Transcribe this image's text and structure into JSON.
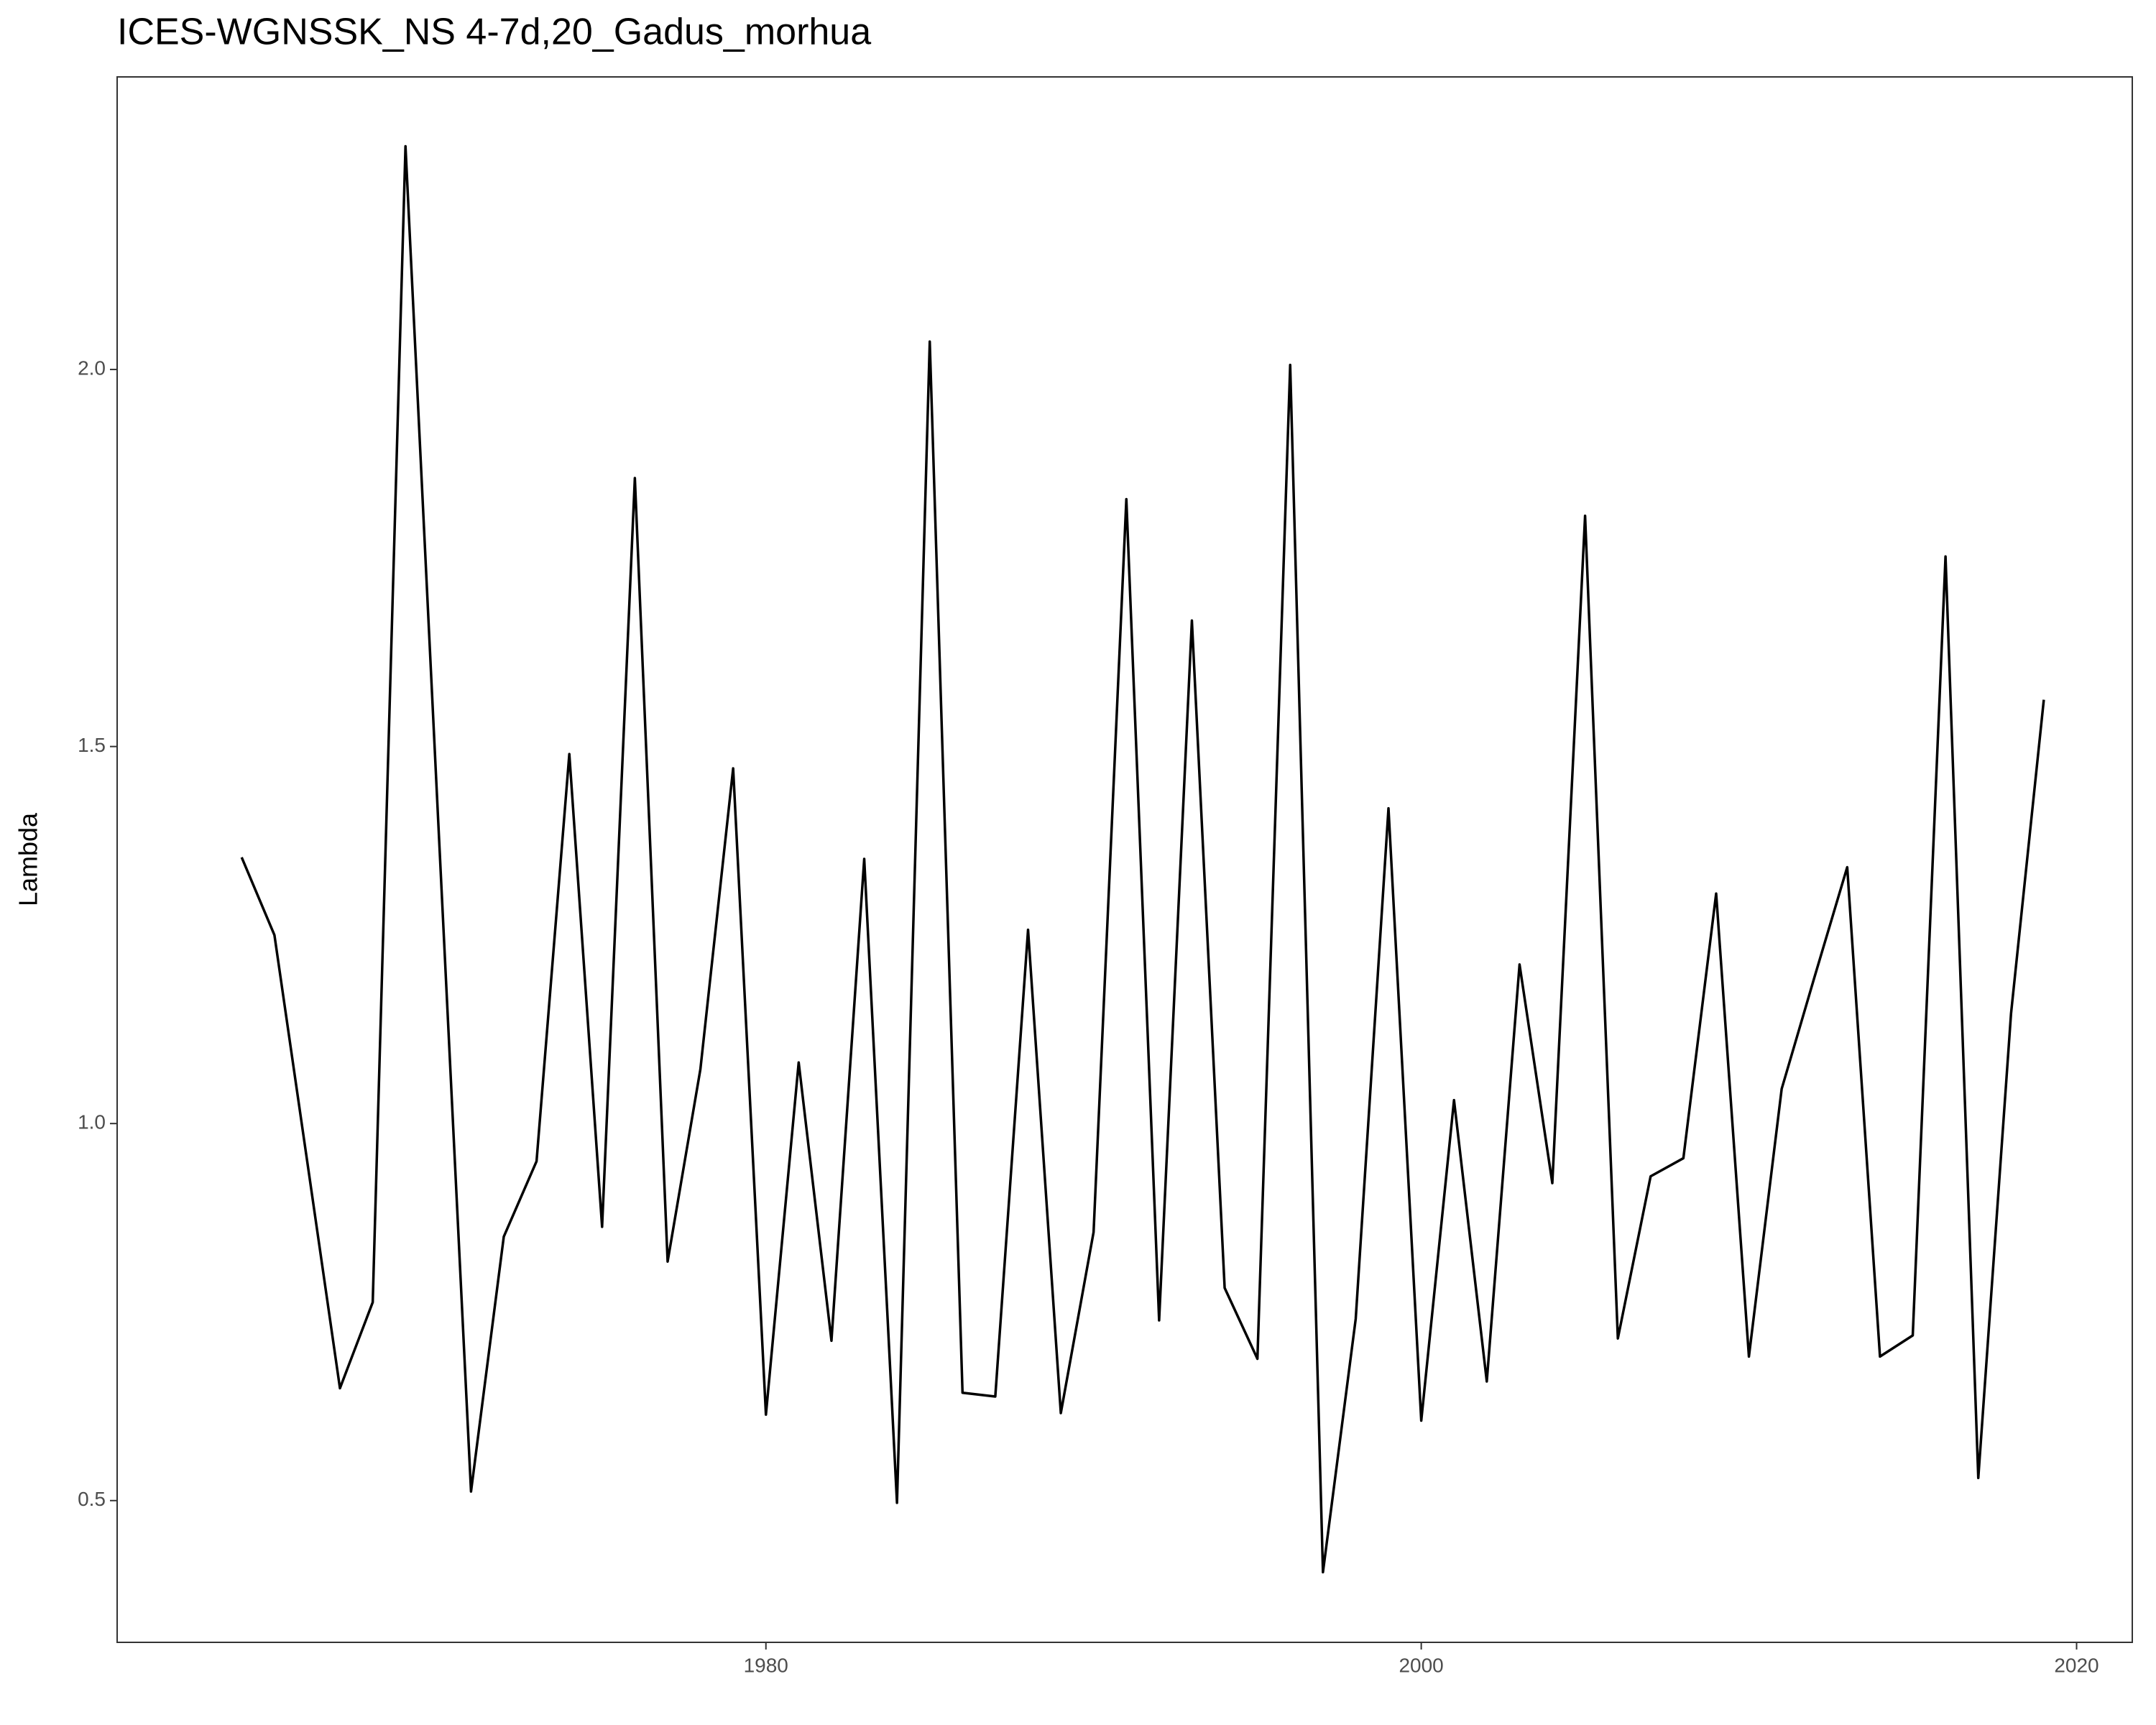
{
  "chart_data": {
    "type": "line",
    "title": "ICES-WGNSSK_NS 4-7d,20_Gadus_morhua",
    "y_label": "Lambda",
    "x": [
      1964,
      1965,
      1966,
      1967,
      1968,
      1969,
      1970,
      1971,
      1972,
      1973,
      1974,
      1975,
      1976,
      1977,
      1978,
      1979,
      1980,
      1981,
      1982,
      1983,
      1984,
      1985,
      1986,
      1987,
      1988,
      1989,
      1990,
      1991,
      1992,
      1993,
      1994,
      1995,
      1996,
      1997,
      1998,
      1999,
      2000,
      2001,
      2002,
      2003,
      2004,
      2005,
      2006,
      2007,
      2008,
      2009,
      2010,
      2011,
      2012,
      2013,
      2014,
      2015,
      2016,
      2017,
      2018,
      2019
    ],
    "series": [
      {
        "color": "#000000",
        "values": [
          1.353,
          1.25,
          0.95,
          0.649,
          0.763,
          2.296,
          1.4,
          0.512,
          0.85,
          0.95,
          1.49,
          0.863,
          1.856,
          0.817,
          1.072,
          1.471,
          0.614,
          1.081,
          0.712,
          1.351,
          0.497,
          2.037,
          0.643,
          0.638,
          1.257,
          0.616,
          0.856,
          1.828,
          0.739,
          1.667,
          0.782,
          0.688,
          2.006,
          0.405,
          0.741,
          1.418,
          0.606,
          1.031,
          0.658,
          1.211,
          0.921,
          1.806,
          0.715,
          0.93,
          0.954,
          1.305,
          0.691,
          1.046,
          1.194,
          1.34,
          0.691,
          0.719,
          1.752,
          0.53,
          1.146,
          1.562
        ]
      }
    ],
    "xlim": [
      1960.2,
      2021.7
    ],
    "xticks": [
      1980,
      2000,
      2020
    ],
    "ylim": [
      0.312,
      2.388
    ],
    "yticks": [
      0.5,
      {
        "value": 1.0,
        "label": "1.0"
      },
      1.5,
      {
        "value": 2.0,
        "label": "2.0"
      }
    ],
    "grid": false
  }
}
